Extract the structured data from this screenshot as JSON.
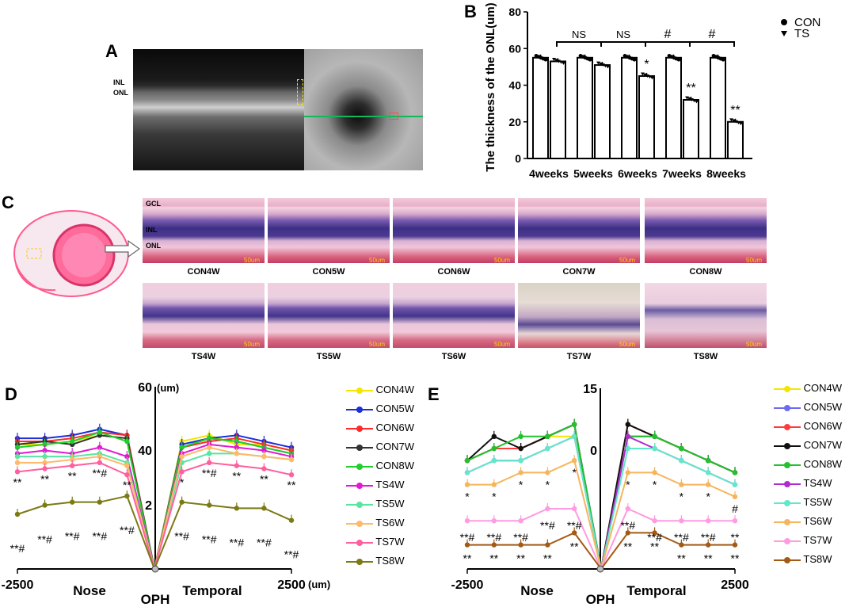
{
  "panels": {
    "A": "A",
    "B": "B",
    "C": "C",
    "D": "D",
    "E": "E"
  },
  "panelA": {
    "inl": "INL",
    "onl": "ONL"
  },
  "panelB": {
    "chart_data": {
      "type": "bar",
      "ylabel": "The thickness of the ONL(um)",
      "ylim": [
        0,
        80
      ],
      "yticks": [
        "0",
        "20",
        "40",
        "60",
        "80"
      ],
      "categories": [
        "4weeks",
        "5weeks",
        "6weeks",
        "7weeks",
        "8weeks"
      ],
      "series": [
        {
          "name": "CON",
          "values": [
            55,
            55,
            55,
            55,
            55
          ]
        },
        {
          "name": "TS",
          "values": [
            53,
            51,
            45,
            32,
            20
          ]
        }
      ],
      "ts_labels": [
        "",
        "",
        "*",
        "**",
        "**"
      ],
      "comparisons": [
        "NS",
        "NS",
        "#",
        "#"
      ],
      "legend": [
        "CON",
        "TS"
      ]
    }
  },
  "panelC": {
    "layers": {
      "gcl": "GCL",
      "inl": "INL",
      "onl": "ONL"
    },
    "scalebar": "50um",
    "con": [
      "CON4W",
      "CON5W",
      "CON6W",
      "CON7W",
      "CON8W"
    ],
    "ts": [
      "TS4W",
      "TS5W",
      "TS6W",
      "TS7W",
      "TS8W"
    ]
  },
  "panelD": {
    "chart_data": {
      "type": "line",
      "x_label_left": "Nose",
      "x_label_center": "OPH",
      "x_label_right": "Temporal",
      "xtick_left": "-2500",
      "xtick_right": "2500",
      "x_unit": "(um)",
      "ytick_top": "60",
      "y_unit": "(um)",
      "ytick_mid": "40",
      "ytick_low": "2",
      "x": [
        -2500,
        -2000,
        -1500,
        -1000,
        -500,
        0,
        500,
        1000,
        1500,
        2000,
        2500
      ],
      "series": [
        {
          "name": "CON4W",
          "color": "#f2e600",
          "values": [
            41,
            41,
            42,
            44,
            43,
            0,
            42,
            44,
            41,
            41,
            39
          ]
        },
        {
          "name": "CON5W",
          "color": "#1a2fd6",
          "values": [
            43,
            43,
            44,
            46,
            44,
            0,
            41,
            43,
            44,
            42,
            40
          ]
        },
        {
          "name": "CON6W",
          "color": "#ff2a2a",
          "values": [
            42,
            42,
            43,
            45,
            44,
            0,
            40,
            42,
            43,
            41,
            39
          ]
        },
        {
          "name": "CON7W",
          "color": "#333333",
          "values": [
            41,
            42,
            41,
            44,
            43,
            0,
            40,
            43,
            42,
            40,
            38
          ]
        },
        {
          "name": "CON8W",
          "color": "#1fcf2b",
          "values": [
            40,
            41,
            42,
            45,
            42,
            0,
            40,
            43,
            42,
            40,
            38
          ]
        },
        {
          "name": "TS4W",
          "color": "#e01ad0",
          "values": [
            38,
            39,
            38,
            40,
            37,
            0,
            38,
            41,
            40,
            39,
            37
          ]
        },
        {
          "name": "TS5W",
          "color": "#57e6a0",
          "values": [
            37,
            37,
            37,
            38,
            35,
            0,
            35,
            38,
            38,
            37,
            36
          ]
        },
        {
          "name": "TS6W",
          "color": "#ffb96a",
          "values": [
            35,
            35,
            36,
            37,
            34,
            0,
            37,
            40,
            38,
            37,
            36
          ]
        },
        {
          "name": "TS7W",
          "color": "#ff5f9e",
          "values": [
            32,
            33,
            34,
            35,
            31,
            0,
            32,
            35,
            34,
            33,
            31
          ]
        },
        {
          "name": "TS8W",
          "color": "#7b7a14",
          "values": [
            18,
            21,
            22,
            22,
            24,
            0,
            22,
            21,
            20,
            20,
            16
          ]
        }
      ],
      "annot_ts7": [
        "**",
        "**",
        "**",
        "**#",
        "**",
        "*",
        "**#",
        "**",
        "**",
        "**"
      ],
      "annot_ts8": [
        "**#",
        "**#",
        "**#",
        "**#",
        "**#",
        "**#",
        "**#",
        "**#",
        "**#",
        "**#"
      ]
    }
  },
  "panelE": {
    "chart_data": {
      "type": "line",
      "x_label_left": "Nose",
      "x_label_center": "OPH",
      "x_label_right": "Temporal",
      "xtick_left": "-2500",
      "xtick_right": "2500",
      "ytick_top": "15",
      "ytick_mid": "0",
      "x": [
        -2500,
        -2000,
        -1500,
        -1000,
        -500,
        0,
        500,
        1000,
        1500,
        2000,
        2500
      ],
      "series": [
        {
          "name": "CON4W",
          "color": "#f2e600",
          "values": [
            9,
            10,
            10,
            11,
            11,
            0,
            11,
            11,
            10,
            9,
            8
          ]
        },
        {
          "name": "CON5W",
          "color": "#6b6cf0",
          "values": [
            9,
            10,
            10,
            11,
            12,
            0,
            11,
            11,
            10,
            9,
            8
          ]
        },
        {
          "name": "CON6W",
          "color": "#ff3b3b",
          "values": [
            9,
            10,
            10,
            11,
            12,
            0,
            12,
            11,
            10,
            9,
            8
          ]
        },
        {
          "name": "CON7W",
          "color": "#111111",
          "values": [
            9,
            11,
            10,
            11,
            12,
            0,
            12,
            11,
            10,
            9,
            8
          ]
        },
        {
          "name": "CON8W",
          "color": "#22c12e",
          "values": [
            9,
            10,
            11,
            11,
            12,
            0,
            11,
            11,
            10,
            9,
            8
          ]
        },
        {
          "name": "TS4W",
          "color": "#b22ad1",
          "values": [
            8,
            9,
            9,
            10,
            11,
            0,
            11,
            10,
            9,
            8,
            7
          ]
        },
        {
          "name": "TS5W",
          "color": "#5fe9c8",
          "values": [
            8,
            9,
            9,
            10,
            11,
            0,
            10,
            10,
            9,
            8,
            7
          ]
        },
        {
          "name": "TS6W",
          "color": "#f6b55d",
          "values": [
            7,
            7,
            8,
            8,
            9,
            0,
            8,
            8,
            7,
            7,
            6
          ]
        },
        {
          "name": "TS7W",
          "color": "#ff9be0",
          "values": [
            4,
            4,
            4,
            5,
            5,
            0,
            5,
            4,
            4,
            4,
            4
          ]
        },
        {
          "name": "TS8W",
          "color": "#a35a14",
          "values": [
            2,
            2,
            2,
            2,
            3,
            0,
            3,
            3,
            2,
            2,
            2
          ]
        }
      ],
      "annot_ts6": [
        "*",
        "*",
        "*",
        "*",
        "*",
        "*",
        "*",
        "*",
        "*",
        "#"
      ],
      "annot_ts7": [
        "**#",
        "**#",
        "**#",
        "**#",
        "**#",
        "**#",
        "**#",
        "**#",
        "**#",
        "**"
      ],
      "annot_ts8": [
        "**",
        "**",
        "**",
        "**",
        "**",
        "**",
        "**",
        "**",
        "**",
        "**"
      ]
    }
  }
}
